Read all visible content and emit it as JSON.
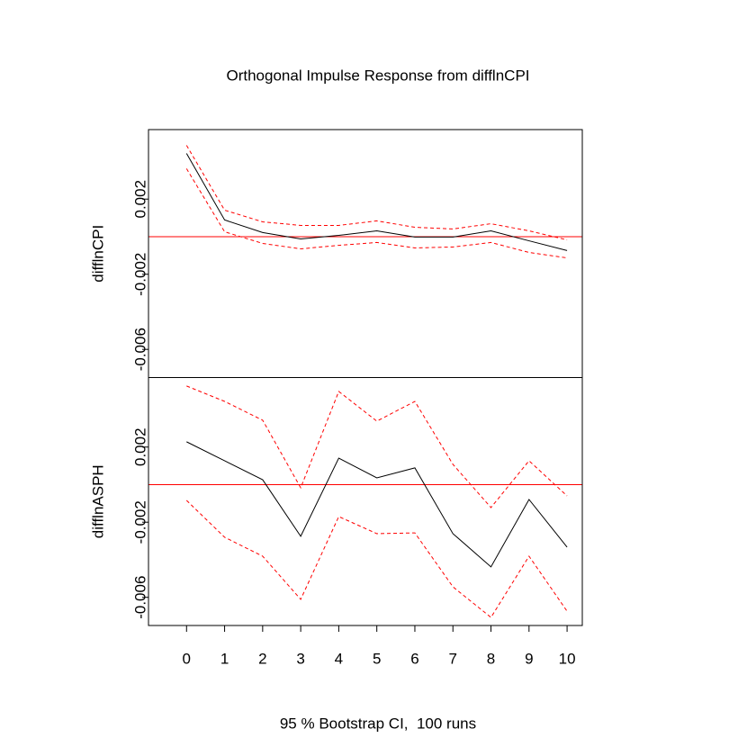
{
  "chart_data": [
    {
      "type": "line",
      "title": "Orthogonal Impulse Response from difflnCPI",
      "y_label": "difflnCPI",
      "x": [
        0,
        1,
        2,
        3,
        4,
        5,
        6,
        7,
        8,
        9,
        10
      ],
      "xlim": [
        -1,
        10.4
      ],
      "ylim": [
        -0.0075,
        0.0057
      ],
      "yticks": [
        0.002,
        -0.002,
        -0.006
      ],
      "hline": 0,
      "hline_color": "#ff0000",
      "series": [
        {
          "color": "#000000",
          "dash": false,
          "values": [
            0.00443,
            0.00089,
            0.00022,
            -0.00012,
            7e-05,
            0.00031,
            -2e-05,
            -2e-05,
            0.00031,
            -0.00022,
            -0.00074
          ]
        },
        {
          "color": "#ff0000",
          "dash": true,
          "values": [
            0.00486,
            0.00141,
            0.00079,
            0.0006,
            0.0006,
            0.00084,
            0.0005,
            0.00041,
            0.00069,
            0.00031,
            -0.00017
          ]
        },
        {
          "color": "#ff0000",
          "dash": true,
          "values": [
            0.00362,
            0.00026,
            -0.00036,
            -0.00065,
            -0.00046,
            -0.00031,
            -0.0006,
            -0.00055,
            -0.00031,
            -0.00084,
            -0.00113
          ]
        }
      ]
    },
    {
      "type": "line",
      "x_label": "95 % Bootstrap CI,  100 runs",
      "y_label": "difflnASPH",
      "x": [
        0,
        1,
        2,
        3,
        4,
        5,
        6,
        7,
        8,
        9,
        10
      ],
      "xlim": [
        -1,
        10.4
      ],
      "xticks": [
        0,
        1,
        2,
        3,
        4,
        5,
        6,
        7,
        8,
        9,
        10
      ],
      "ylim": [
        -0.0075,
        0.0057
      ],
      "yticks": [
        0.002,
        -0.002,
        -0.006
      ],
      "hline": 0,
      "hline_color": "#ff0000",
      "series": [
        {
          "color": "#000000",
          "dash": false,
          "values": [
            0.00228,
            0.00127,
            0.00026,
            -0.00275,
            0.00141,
            0.00036,
            0.00089,
            -0.00261,
            -0.00438,
            -0.00079,
            -0.00333
          ]
        },
        {
          "color": "#ff0000",
          "dash": true,
          "values": [
            0.00525,
            0.00443,
            0.00343,
            -0.00017,
            0.00496,
            0.00338,
            0.00443,
            0.00108,
            -0.00122,
            0.00127,
            -0.0006
          ]
        },
        {
          "color": "#ff0000",
          "dash": true,
          "values": [
            -0.00084,
            -0.0028,
            -0.00381,
            -0.00611,
            -0.0017,
            -0.00261,
            -0.00257,
            -0.00544,
            -0.00707,
            -0.00381,
            -0.00674
          ]
        }
      ]
    }
  ]
}
